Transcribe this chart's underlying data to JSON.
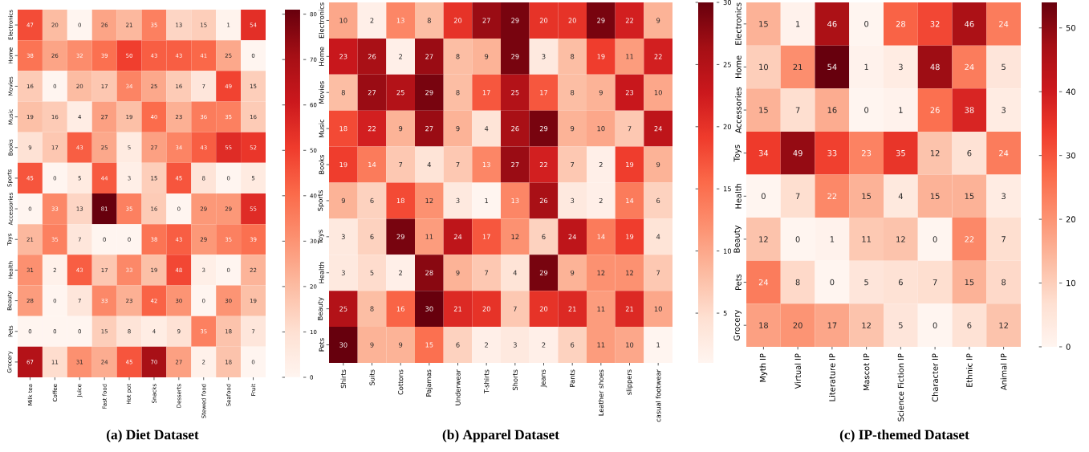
{
  "chart_data": [
    {
      "type": "heatmap",
      "title": "(a) Diet Dataset",
      "categories": [
        "Milk tea",
        "Coffee",
        "Juice",
        "Fast food",
        "Hot pot",
        "Snacks",
        "Desserts",
        "Stewed food",
        "Seafood",
        "Fruit"
      ],
      "y_categories": [
        "Electronics",
        "Home",
        "Movies",
        "Music",
        "Books",
        "Sports",
        "Accessories",
        "Toys",
        "Health",
        "Beauty",
        "Pets",
        "Grocery"
      ],
      "cells": [
        [
          47,
          20,
          0,
          26,
          21,
          35,
          13,
          15,
          1,
          54
        ],
        [
          38,
          26,
          32,
          39,
          50,
          43,
          43,
          41,
          25,
          0
        ],
        [
          16,
          0,
          20,
          17,
          34,
          25,
          16,
          7,
          49,
          15
        ],
        [
          19,
          16,
          4,
          27,
          19,
          40,
          23,
          36,
          35,
          16
        ],
        [
          9,
          17,
          43,
          25,
          5,
          27,
          34,
          43,
          55,
          52
        ],
        [
          45,
          0,
          5,
          44,
          3,
          15,
          45,
          8,
          0,
          5
        ],
        [
          0,
          33,
          13,
          81,
          35,
          16,
          0,
          29,
          29,
          55
        ],
        [
          21,
          35,
          7,
          0,
          0,
          38,
          43,
          29,
          35,
          39
        ],
        [
          31,
          2,
          43,
          17,
          33,
          19,
          48,
          3,
          0,
          22
        ],
        [
          28,
          0,
          7,
          33,
          23,
          42,
          30,
          0,
          30,
          19
        ],
        [
          0,
          0,
          0,
          15,
          8,
          4,
          9,
          35,
          18,
          7
        ],
        [
          67,
          11,
          31,
          24,
          45,
          70,
          27,
          2,
          18,
          0
        ]
      ],
      "clim": [
        0,
        81
      ],
      "cticks": [
        0,
        10,
        20,
        30,
        40,
        50,
        60,
        70,
        80
      ],
      "data_labels": true
    },
    {
      "type": "heatmap",
      "title": "(b) Apparel Dataset",
      "categories": [
        "Shirts",
        "Suits",
        "Cottons",
        "Pajamas",
        "Underwear",
        "T-shirts",
        "Shorts",
        "Jeans",
        "Pants",
        "Leather shoes",
        "slippers",
        "casual footwear"
      ],
      "y_categories": [
        "Electronics",
        "Home",
        "Movies",
        "Music",
        "Books",
        "Sports",
        "Toys",
        "Health",
        "Beauty",
        "Pets"
      ],
      "cells": [
        [
          10,
          2,
          13,
          8,
          20,
          27,
          29,
          20,
          20,
          29,
          22,
          9
        ],
        [
          23,
          26,
          2,
          27,
          8,
          9,
          29,
          3,
          8,
          19,
          11,
          22
        ],
        [
          8,
          27,
          25,
          29,
          8,
          17,
          25,
          17,
          8,
          9,
          23,
          10
        ],
        [
          18,
          22,
          9,
          27,
          9,
          4,
          26,
          29,
          9,
          10,
          7,
          24
        ],
        [
          19,
          14,
          7,
          4,
          7,
          13,
          27,
          22,
          7,
          2,
          19,
          9
        ],
        [
          9,
          6,
          18,
          12,
          3,
          1,
          13,
          26,
          3,
          2,
          14,
          6
        ],
        [
          3,
          6,
          29,
          11,
          24,
          17,
          12,
          6,
          24,
          14,
          19,
          4
        ],
        [
          3,
          5,
          2,
          28,
          9,
          7,
          4,
          29,
          9,
          12,
          12,
          7
        ],
        [
          25,
          8,
          16,
          30,
          21,
          20,
          7,
          20,
          21,
          11,
          21,
          10
        ],
        [
          30,
          9,
          9,
          15,
          6,
          2,
          3,
          2,
          6,
          11,
          10,
          1
        ]
      ],
      "clim": [
        1,
        30
      ],
      "cticks": [
        5,
        10,
        15,
        20,
        25,
        30
      ],
      "data_labels": true
    },
    {
      "type": "heatmap",
      "title": "(c) IP-themed Dataset",
      "categories": [
        "Myth IP",
        "Virtual IP",
        "Literature IP",
        "Mascot IP",
        "Science Fiction IP",
        "Character IP",
        "Ethnic IP",
        "Animal IP"
      ],
      "y_categories": [
        "Electronics",
        "Home",
        "Accessories",
        "Toys",
        "Health",
        "Beauty",
        "Pets",
        "Grocery"
      ],
      "cells": [
        [
          15,
          1,
          46,
          0,
          28,
          32,
          46,
          24
        ],
        [
          10,
          21,
          54,
          1,
          3,
          48,
          24,
          5
        ],
        [
          15,
          7,
          16,
          0,
          1,
          26,
          38,
          3
        ],
        [
          34,
          49,
          33,
          23,
          35,
          12,
          6,
          24
        ],
        [
          0,
          7,
          22,
          15,
          4,
          15,
          15,
          3
        ],
        [
          12,
          0,
          1,
          11,
          12,
          0,
          22,
          7
        ],
        [
          24,
          8,
          0,
          5,
          6,
          7,
          15,
          8
        ],
        [
          18,
          20,
          17,
          12,
          5,
          0,
          6,
          12
        ]
      ],
      "clim": [
        0,
        54
      ],
      "cticks": [
        0,
        10,
        20,
        30,
        40,
        50
      ],
      "data_labels": true
    }
  ]
}
